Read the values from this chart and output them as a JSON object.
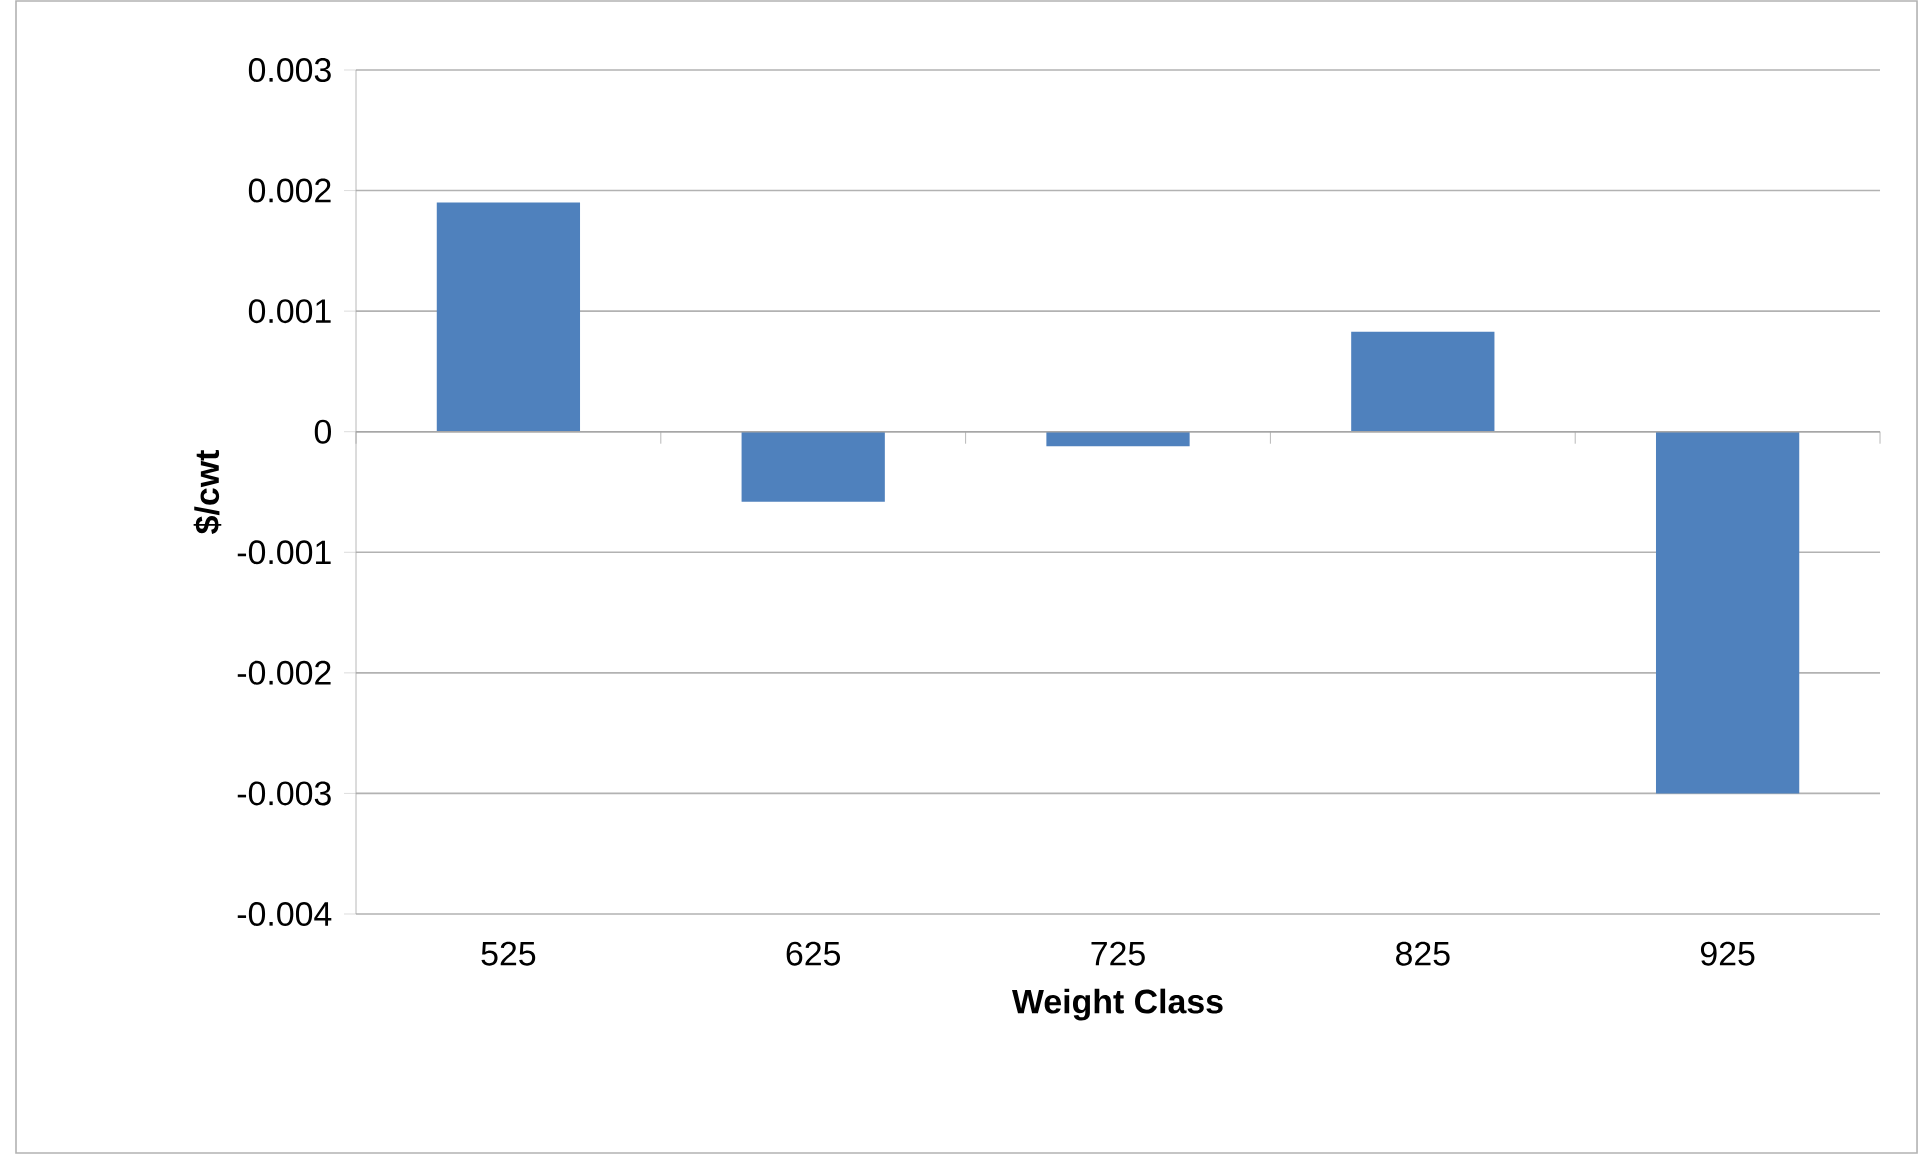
{
  "chart_data": {
    "type": "bar",
    "xlabel": "Weight Class",
    "ylabel": "$/cwt",
    "categories": [
      "525",
      "625",
      "725",
      "825",
      "925"
    ],
    "values": [
      0.0019,
      -0.00058,
      -0.00012,
      0.00083,
      -0.003
    ],
    "color": "#4f81bd",
    "ylim": [
      -0.004,
      0.003
    ],
    "yticks": [
      -0.004,
      -0.003,
      -0.002,
      -0.001,
      0,
      0.001,
      0.002,
      0.003
    ],
    "grid": "y"
  }
}
